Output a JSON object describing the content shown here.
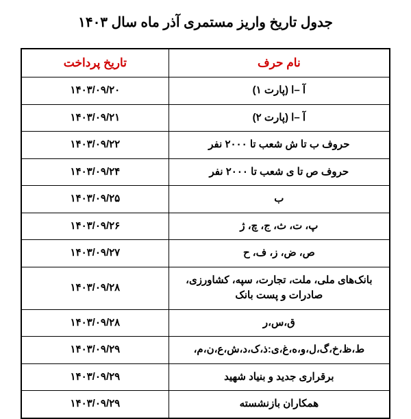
{
  "title": "جدول تاریخ واریز مستمری آذر ماه سال ۱۴۰۳",
  "table": {
    "headers": {
      "name": "نام حرف",
      "date": "تاریخ پرداخت"
    },
    "rows": [
      {
        "name": "آ –ا (پارت ۱)",
        "date": "۱۴۰۳/۰۹/۲۰"
      },
      {
        "name": "آ –ا (پارت ۲)",
        "date": "۱۴۰۳/۰۹/۲۱"
      },
      {
        "name": "حروف ب تا ش شعب تا ۲۰۰۰ نفر",
        "date": "۱۴۰۳/۰۹/۲۲"
      },
      {
        "name": "حروف ص تا ی شعب تا ۲۰۰۰ نفر",
        "date": "۱۴۰۳/۰۹/۲۴"
      },
      {
        "name": "ب",
        "date": "۱۴۰۳/۰۹/۲۵"
      },
      {
        "name": "پ، ت، ث، ج، چ، ژ",
        "date": "۱۴۰۳/۰۹/۲۶"
      },
      {
        "name": "ص، ض، ز، ف، ح",
        "date": "۱۴۰۳/۰۹/۲۷"
      },
      {
        "name": "بانک‌های ملی، ملت، تجارت، سپه، کشاورزی، صادرات و پست بانک",
        "date": "۱۴۰۳/۰۹/۲۸"
      },
      {
        "name": "ق،س،ر",
        "date": "۱۴۰۳/۰۹/۲۸"
      },
      {
        "name": "ط،ظ،خ،گ،ل،و،ه،غ،ی:ذ،ک،د،ش،ع،ن،م،",
        "date": "۱۴۰۳/۰۹/۲۹"
      },
      {
        "name": "برقراری جدید و بنیاد شهید",
        "date": "۱۴۰۳/۰۹/۲۹"
      },
      {
        "name": "همکاران بازنشسته",
        "date": "۱۴۰۳/۰۹/۲۹"
      }
    ]
  },
  "colors": {
    "header_text": "#d00000",
    "body_text": "#000000",
    "border": "#000000",
    "background": "#ffffff"
  }
}
